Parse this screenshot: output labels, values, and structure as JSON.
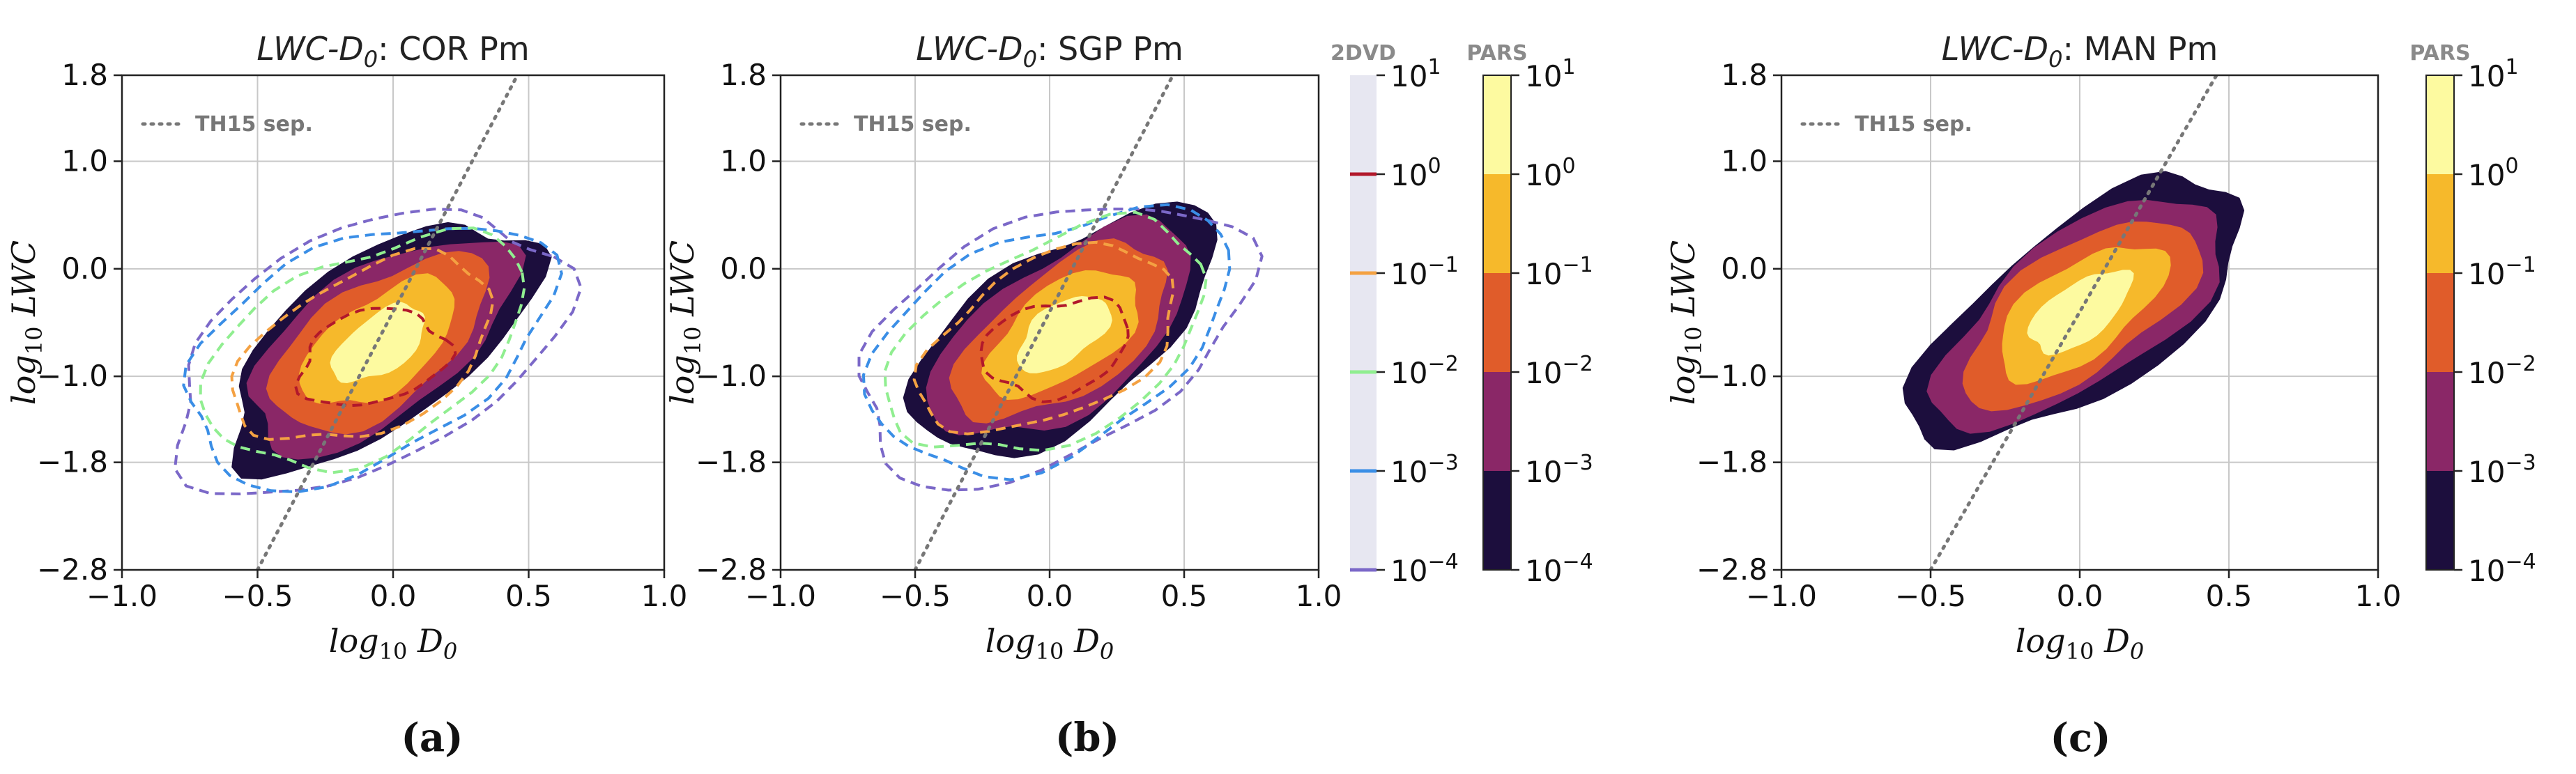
{
  "chart_data": [
    {
      "type": "heatmap",
      "panel": "(a)",
      "title_main": "LWC-D",
      "title_sub": "0",
      "title_rest": ":  COR Pm",
      "xlabel_main": "log",
      "xlabel_sub1": "10",
      "xlabel_mid": " D",
      "xlabel_sub2": "0",
      "ylabel_main": "log",
      "ylabel_sub1": "10",
      "ylabel_rest": " LWC",
      "xlim": [
        -1.0,
        1.0
      ],
      "ylim": [
        -2.8,
        1.8
      ],
      "xticks": [
        -1.0,
        -0.5,
        0.0,
        0.5,
        1.0
      ],
      "xticklabels": [
        "−1.0",
        "−0.5",
        "0.0",
        "0.5",
        "1.0"
      ],
      "yticks": [
        -2.8,
        -1.8,
        -1.0,
        0.0,
        1.0,
        1.8
      ],
      "yticklabels": [
        "−2.8",
        "−1.8",
        "−1.0",
        "0.0",
        "1.0",
        "1.8"
      ],
      "legend": "TH15 sep.",
      "separator_line": {
        "x": [
          -0.5,
          0.5
        ],
        "y": [
          -2.8,
          2.0
        ]
      },
      "density_center": [
        -0.05,
        -0.7
      ],
      "has_2dvd_contours": true
    },
    {
      "type": "heatmap",
      "panel": "(b)",
      "title_main": "LWC-D",
      "title_sub": "0",
      "title_rest": ":  SGP Pm",
      "xlabel_main": "log",
      "xlabel_sub1": "10",
      "xlabel_mid": " D",
      "xlabel_sub2": "0",
      "ylabel_main": "log",
      "ylabel_sub1": "10",
      "ylabel_rest": " LWC",
      "xlim": [
        -1.0,
        1.0
      ],
      "ylim": [
        -2.8,
        1.8
      ],
      "xticks": [
        -1.0,
        -0.5,
        0.0,
        0.5,
        1.0
      ],
      "xticklabels": [
        "−1.0",
        "−0.5",
        "0.0",
        "0.5",
        "1.0"
      ],
      "yticks": [
        -2.8,
        -1.8,
        -1.0,
        0.0,
        1.0,
        1.8
      ],
      "yticklabels": [
        "−2.8",
        "−1.8",
        "−1.0",
        "0.0",
        "1.0",
        "1.8"
      ],
      "legend": "TH15 sep.",
      "separator_line": {
        "x": [
          -0.5,
          0.5
        ],
        "y": [
          -2.8,
          2.0
        ]
      },
      "density_center": [
        0.05,
        -0.6
      ],
      "has_2dvd_contours": true
    },
    {
      "type": "heatmap",
      "panel": "(c)",
      "title_main": "LWC-D",
      "title_sub": "0",
      "title_rest": ":  MAN Pm",
      "xlabel_main": "log",
      "xlabel_sub1": "10",
      "xlabel_mid": " D",
      "xlabel_sub2": "0",
      "ylabel_main": "log",
      "ylabel_sub1": "10",
      "ylabel_rest": " LWC",
      "xlim": [
        -1.0,
        1.0
      ],
      "ylim": [
        -2.8,
        1.8
      ],
      "xticks": [
        -1.0,
        -0.5,
        0.0,
        0.5,
        1.0
      ],
      "xticklabels": [
        "−1.0",
        "−0.5",
        "0.0",
        "0.5",
        "1.0"
      ],
      "yticks": [
        -2.8,
        -1.8,
        -1.0,
        0.0,
        1.0,
        1.8
      ],
      "yticklabels": [
        "−2.8",
        "−1.8",
        "−1.0",
        "0.0",
        "1.0",
        "1.8"
      ],
      "legend": "TH15 sep.",
      "separator_line": {
        "x": [
          -0.5,
          0.5
        ],
        "y": [
          -2.8,
          2.0
        ]
      },
      "density_center": [
        0.0,
        -0.4
      ],
      "has_2dvd_contours": false
    }
  ],
  "colorbars": {
    "dvd": {
      "title": "2DVD",
      "levels": [
        "10",
        "10",
        "10",
        "10",
        "10",
        "10"
      ],
      "exponents": [
        "1",
        "0",
        "−1",
        "−2",
        "−3",
        "−4"
      ],
      "line_colors": [
        "#b2182b",
        "#f4a142",
        "#90ee90",
        "#3a8ee6",
        "#7b68c8"
      ],
      "background": "#e7e7f1"
    },
    "pars_b": {
      "title": "PARS",
      "levels": [
        "10",
        "10",
        "10",
        "10",
        "10",
        "10"
      ],
      "exponents": [
        "1",
        "0",
        "−1",
        "−2",
        "−3",
        "−4"
      ]
    },
    "pars_c": {
      "title": "PARS",
      "levels": [
        "10",
        "10",
        "10",
        "10",
        "10",
        "10"
      ],
      "exponents": [
        "1",
        "0",
        "−1",
        "−2",
        "−3",
        "−4"
      ]
    },
    "fill_colors": [
      "#fdfaa0",
      "#f6b92b",
      "#e05c2a",
      "#8a2767",
      "#1c0e3d"
    ]
  }
}
